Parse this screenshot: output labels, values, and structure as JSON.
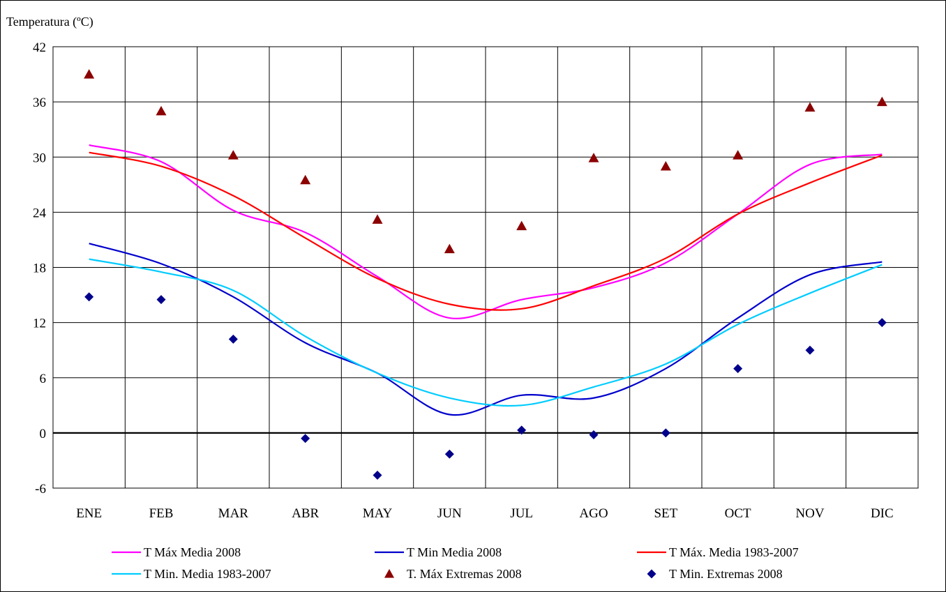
{
  "chart_data": {
    "type": "line",
    "ylabel": "Temperatura   (ºC)",
    "ylim": [
      -6,
      42
    ],
    "yticks": [
      -6,
      0,
      6,
      12,
      18,
      24,
      30,
      36,
      42
    ],
    "categories": [
      "ENE",
      "FEB",
      "MAR",
      "ABR",
      "MAY",
      "JUN",
      "JUL",
      "AGO",
      "SET",
      "OCT",
      "NOV",
      "DIC"
    ],
    "grid": true,
    "legend_position": "bottom",
    "series": [
      {
        "name": "T Máx Media 2008",
        "kind": "line",
        "color": "#ff00ff",
        "values": [
          31.3,
          29.5,
          24.2,
          21.8,
          17.0,
          12.5,
          14.5,
          15.8,
          18.5,
          23.8,
          29.2,
          30.3
        ]
      },
      {
        "name": "T Min Media 2008",
        "kind": "line",
        "color": "#0000cc",
        "values": [
          20.6,
          18.4,
          14.8,
          9.8,
          6.5,
          2.0,
          4.1,
          3.8,
          7.0,
          12.5,
          17.2,
          18.6
        ]
      },
      {
        "name": "T Máx. Media 1983-2007",
        "kind": "line",
        "color": "#ff0000",
        "values": [
          30.5,
          29.0,
          25.8,
          21.2,
          16.8,
          14.0,
          13.5,
          16.0,
          19.0,
          23.8,
          27.2,
          30.2
        ]
      },
      {
        "name": "T Min. Media 1983-2007",
        "kind": "line",
        "color": "#00ccff",
        "values": [
          18.9,
          17.5,
          15.5,
          10.5,
          6.5,
          3.8,
          3.0,
          5.0,
          7.5,
          11.8,
          15.2,
          18.3
        ]
      },
      {
        "name": "T. Máx Extremas 2008",
        "kind": "marker",
        "marker": "triangle",
        "color": "#8b0000",
        "values": [
          39.0,
          35.0,
          30.2,
          27.5,
          23.2,
          20.0,
          22.5,
          29.9,
          29.0,
          30.2,
          35.4,
          36.0
        ]
      },
      {
        "name": "T Min. Extremas 2008",
        "kind": "marker",
        "marker": "diamond",
        "color": "#00008b",
        "values": [
          14.8,
          14.5,
          10.2,
          -0.6,
          -4.6,
          -2.3,
          0.3,
          -0.2,
          0.0,
          7.0,
          9.0,
          12.0
        ]
      }
    ]
  }
}
